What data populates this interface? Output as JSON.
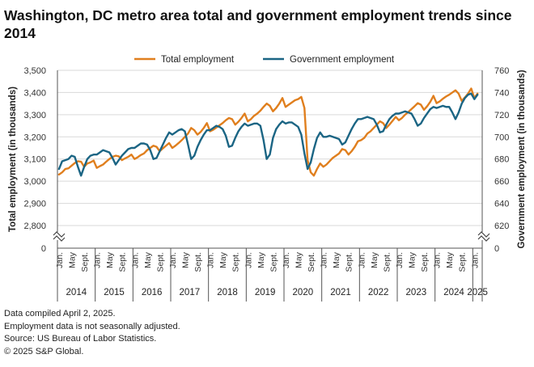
{
  "chart_data": {
    "type": "line",
    "title": "Washington, DC metro area total and government employment trends since 2014",
    "ylabel_left": "Total employment (in thousands)",
    "ylabel_right": "Government employment (in thousands)",
    "y_left": {
      "min": 2800,
      "max": 3500,
      "step": 100,
      "ticks": [
        "3,500",
        "3,400",
        "3,300",
        "3,200",
        "3,100",
        "3,000",
        "2,900",
        "2,800"
      ],
      "base_label": "0"
    },
    "y_right": {
      "min": 620,
      "max": 760,
      "step": 20,
      "ticks": [
        "760",
        "740",
        "720",
        "700",
        "680",
        "660",
        "640",
        "620"
      ],
      "base_label": "0"
    },
    "x_month_labels": [
      "Jan.",
      "May",
      "Sept."
    ],
    "x_years": [
      "2014",
      "2015",
      "2016",
      "2017",
      "2018",
      "2019",
      "2020",
      "2021",
      "2022",
      "2023",
      "2024",
      "2025"
    ],
    "legend": [
      {
        "name": "Total employment",
        "color": "#E07F1E"
      },
      {
        "name": "Government employment",
        "color": "#1B6584"
      }
    ],
    "series": [
      {
        "name": "Total employment",
        "axis": "left",
        "color": "#E07F1E",
        "start": "2014-01",
        "values": [
          3030,
          3040,
          3055,
          3058,
          3070,
          3082,
          3090,
          3088,
          3065,
          3080,
          3085,
          3093,
          3060,
          3068,
          3075,
          3088,
          3100,
          3110,
          3115,
          3112,
          3095,
          3103,
          3110,
          3120,
          3100,
          3108,
          3118,
          3125,
          3140,
          3150,
          3160,
          3155,
          3135,
          3148,
          3160,
          3172,
          3150,
          3160,
          3172,
          3185,
          3200,
          3215,
          3240,
          3230,
          3210,
          3222,
          3240,
          3262,
          3225,
          3232,
          3242,
          3252,
          3262,
          3275,
          3285,
          3280,
          3255,
          3268,
          3285,
          3305,
          3270,
          3280,
          3295,
          3305,
          3318,
          3335,
          3350,
          3340,
          3315,
          3330,
          3350,
          3375,
          3335,
          3345,
          3355,
          3365,
          3370,
          3380,
          3330,
          3095,
          3040,
          3025,
          3055,
          3080,
          3065,
          3075,
          3090,
          3105,
          3115,
          3125,
          3145,
          3140,
          3120,
          3135,
          3155,
          3180,
          3185,
          3195,
          3215,
          3225,
          3240,
          3255,
          3270,
          3262,
          3240,
          3255,
          3272,
          3290,
          3275,
          3285,
          3300,
          3312,
          3325,
          3338,
          3352,
          3345,
          3322,
          3338,
          3358,
          3385,
          3352,
          3360,
          3372,
          3382,
          3390,
          3400,
          3410,
          3395,
          3362,
          3378,
          3395,
          3418,
          3375,
          3395
        ]
      },
      {
        "name": "Government employment",
        "axis": "right",
        "color": "#1B6584",
        "start": "2014-01",
        "values": [
          671,
          678,
          679,
          680,
          683,
          682,
          673,
          665,
          673,
          680,
          683,
          684,
          684,
          686,
          688,
          687,
          686,
          681,
          675,
          679,
          683,
          686,
          689,
          690,
          690,
          692,
          694,
          694,
          693,
          688,
          680,
          681,
          687,
          693,
          699,
          704,
          702,
          704,
          706,
          707,
          705,
          693,
          680,
          683,
          691,
          697,
          702,
          706,
          706,
          708,
          710,
          709,
          707,
          701,
          691,
          692,
          699,
          705,
          709,
          712,
          710,
          711,
          712,
          712,
          710,
          697,
          680,
          684,
          699,
          707,
          711,
          714,
          712,
          713,
          713,
          711,
          709,
          702,
          685,
          671,
          677,
          689,
          699,
          704,
          700,
          700,
          701,
          700,
          699,
          698,
          693,
          695,
          701,
          707,
          712,
          716,
          716,
          717,
          718,
          717,
          716,
          711,
          704,
          705,
          711,
          716,
          719,
          721,
          721,
          722,
          723,
          722,
          721,
          716,
          710,
          712,
          717,
          721,
          725,
          727,
          726,
          727,
          728,
          727,
          727,
          722,
          716,
          722,
          730,
          735,
          738,
          739,
          734,
          738
        ]
      }
    ],
    "notes": [
      "Data compiled April 2, 2025.",
      "Employment data is not seasonally adjusted.",
      "Source: US Bureau of Labor Statistics.",
      "© 2025 S&P Global."
    ]
  }
}
